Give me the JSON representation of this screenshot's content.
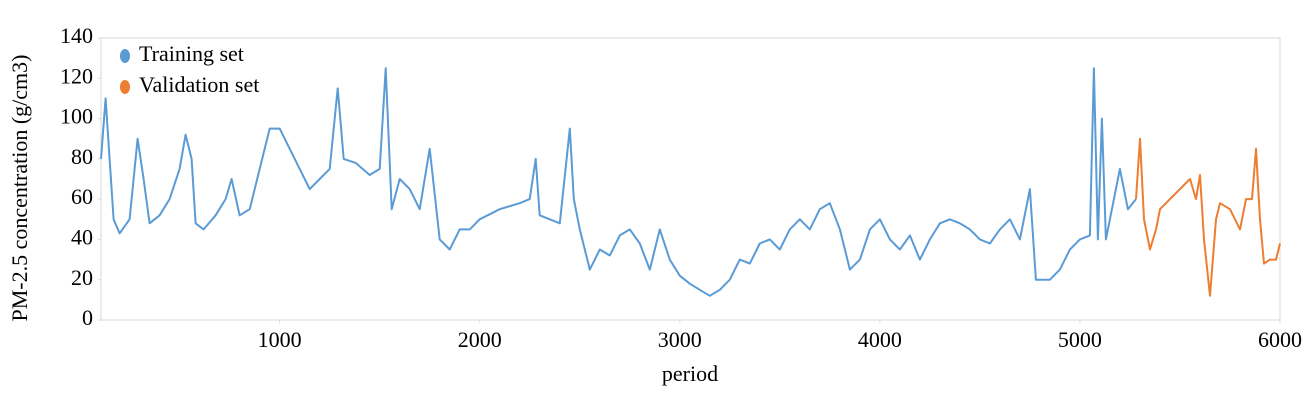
{
  "chart_data": {
    "type": "line",
    "x_label": "period",
    "y_label": "PM-2.5 concentration (g/cm3)",
    "xlim": [
      107,
      6000
    ],
    "xticks": [
      1000,
      2000,
      3000,
      4000,
      5000,
      6000
    ],
    "ylim": [
      0,
      140
    ],
    "yticks": [
      0,
      20,
      40,
      60,
      80,
      100,
      120,
      140
    ],
    "legend": "top-left",
    "series": [
      {
        "name": "Training set",
        "color": "#5b9bd5",
        "x": [
          107,
          130,
          150,
          170,
          200,
          250,
          290,
          320,
          350,
          400,
          450,
          500,
          530,
          560,
          580,
          620,
          680,
          730,
          760,
          800,
          850,
          900,
          950,
          1000,
          1050,
          1100,
          1150,
          1200,
          1250,
          1290,
          1320,
          1380,
          1450,
          1500,
          1530,
          1560,
          1600,
          1650,
          1700,
          1750,
          1800,
          1850,
          1900,
          1950,
          2000,
          2100,
          2200,
          2250,
          2280,
          2300,
          2400,
          2450,
          2470,
          2500,
          2550,
          2600,
          2650,
          2700,
          2750,
          2800,
          2850,
          2900,
          2950,
          3000,
          3050,
          3100,
          3150,
          3200,
          3250,
          3300,
          3350,
          3400,
          3450,
          3500,
          3550,
          3600,
          3650,
          3700,
          3750,
          3800,
          3850,
          3900,
          3950,
          4000,
          4050,
          4100,
          4150,
          4200,
          4250,
          4300,
          4350,
          4400,
          4450,
          4500,
          4550,
          4600,
          4650,
          4700,
          4750,
          4780,
          4850,
          4900,
          4950,
          5000,
          5050,
          5070,
          5090,
          5110,
          5130,
          5150,
          5200,
          5240,
          5280
        ],
        "values": [
          80,
          110,
          80,
          50,
          43,
          50,
          90,
          70,
          48,
          52,
          60,
          75,
          92,
          80,
          48,
          45,
          52,
          60,
          70,
          52,
          55,
          75,
          95,
          95,
          85,
          75,
          65,
          70,
          75,
          115,
          80,
          78,
          72,
          75,
          125,
          55,
          70,
          65,
          55,
          85,
          40,
          35,
          45,
          45,
          50,
          55,
          58,
          60,
          80,
          52,
          48,
          95,
          60,
          45,
          25,
          35,
          32,
          42,
          45,
          38,
          25,
          45,
          30,
          22,
          18,
          15,
          12,
          15,
          20,
          30,
          28,
          38,
          40,
          35,
          45,
          50,
          45,
          55,
          58,
          45,
          25,
          30,
          45,
          50,
          40,
          35,
          42,
          30,
          40,
          48,
          50,
          48,
          45,
          40,
          38,
          45,
          50,
          40,
          65,
          20,
          20,
          25,
          35,
          40,
          42,
          125,
          40,
          100,
          40,
          50,
          75,
          55,
          60
        ]
      },
      {
        "name": "Validation set",
        "color": "#ed7d31",
        "x": [
          5280,
          5300,
          5320,
          5350,
          5380,
          5400,
          5450,
          5500,
          5550,
          5580,
          5600,
          5620,
          5650,
          5680,
          5700,
          5750,
          5800,
          5830,
          5860,
          5880,
          5900,
          5920,
          5950,
          5980,
          6000
        ],
        "values": [
          60,
          90,
          50,
          35,
          45,
          55,
          60,
          65,
          70,
          60,
          72,
          40,
          12,
          50,
          58,
          55,
          45,
          60,
          60,
          85,
          50,
          28,
          30,
          30,
          38
        ]
      }
    ]
  }
}
